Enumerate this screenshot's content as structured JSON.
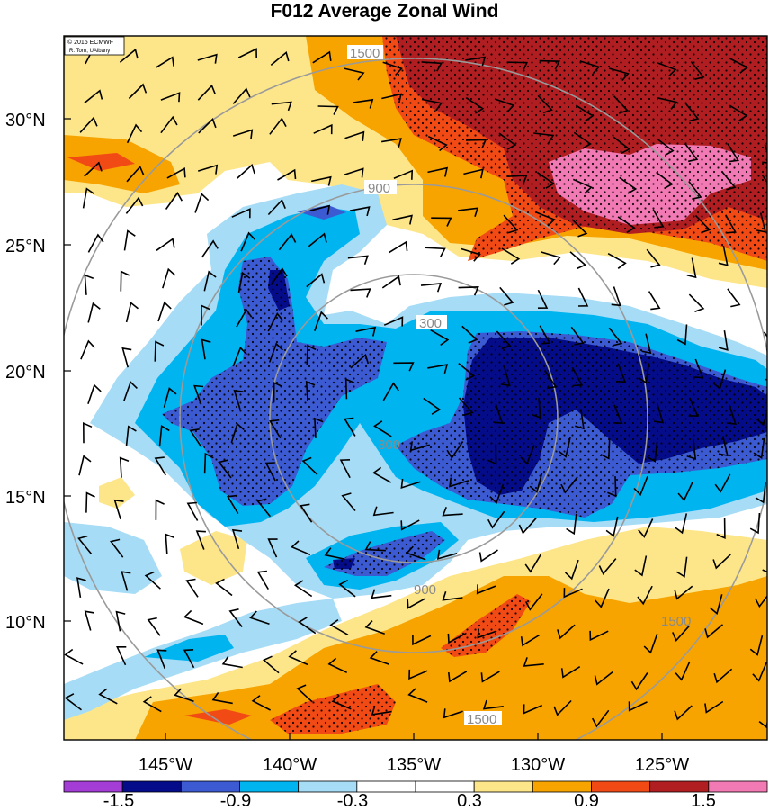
{
  "title": "F012 Average Zonal Wind",
  "credit": [
    "© 2016 ECMWF",
    "R. Torn, UAlbany"
  ],
  "lat_labels": [
    "30°N",
    "25°N",
    "20°N",
    "15°N",
    "10°N"
  ],
  "lon_labels": [
    "145°W",
    "140°W",
    "135°W",
    "130°W",
    "125°W"
  ],
  "ring_labels": [
    "300",
    "900",
    "1500"
  ],
  "colorbar": {
    "labels": [
      "-1.5",
      "-0.9",
      "-0.3",
      "0.3",
      "0.9",
      "1.5"
    ],
    "colors": [
      "#a43cd6",
      "#040c8a",
      "#3c5ad2",
      "#00b4f0",
      "#a6dcf6",
      "#ffffff",
      "#ffffff",
      "#fde68a",
      "#f7a400",
      "#f24a14",
      "#b01e22",
      "#f27ab4"
    ]
  },
  "colors": {
    "plus_low": "#fde68a",
    "plus_mid": "#f7a400",
    "plus_high": "#f24a14",
    "plus_higher": "#b01e22",
    "plus_max": "#f27ab4",
    "minus_low": "#a6dcf6",
    "minus_mid": "#00b4f0",
    "minus_high": "#3c5ad2",
    "minus_max": "#040c8a",
    "rings": "#9a9a9a"
  }
}
